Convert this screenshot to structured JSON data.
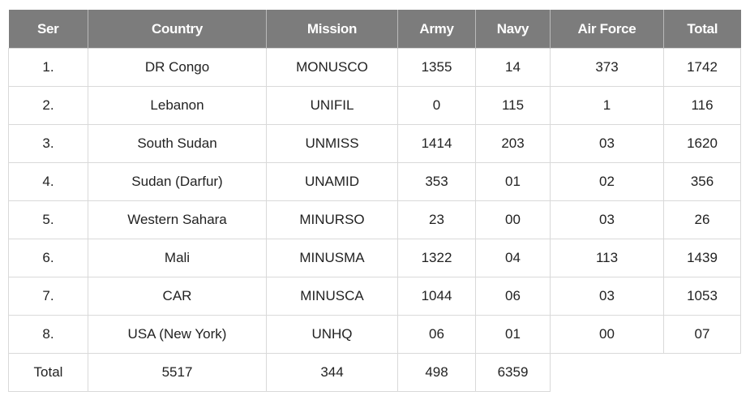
{
  "table": {
    "headers": [
      "Ser",
      "Country",
      "Mission",
      "Army",
      "Navy",
      "Air Force",
      "Total"
    ],
    "rows": [
      {
        "ser": "1.",
        "country": "DR Congo",
        "mission": "MONUSCO",
        "army": "1355",
        "navy": "14",
        "air_force": "373",
        "total": "1742"
      },
      {
        "ser": "2.",
        "country": "Lebanon",
        "mission": "UNIFIL",
        "army": "0",
        "navy": "115",
        "air_force": "1",
        "total": "116"
      },
      {
        "ser": "3.",
        "country": "South Sudan",
        "mission": "UNMISS",
        "army": "1414",
        "navy": "203",
        "air_force": "03",
        "total": "1620"
      },
      {
        "ser": "4.",
        "country": "Sudan (Darfur)",
        "mission": "UNAMID",
        "army": "353",
        "navy": "01",
        "air_force": "02",
        "total": "356"
      },
      {
        "ser": "5.",
        "country": "Western Sahara",
        "mission": "MINURSO",
        "army": "23",
        "navy": "00",
        "air_force": "03",
        "total": "26"
      },
      {
        "ser": "6.",
        "country": "Mali",
        "mission": "MINUSMA",
        "army": "1322",
        "navy": "04",
        "air_force": "113",
        "total": "1439"
      },
      {
        "ser": "7.",
        "country": "CAR",
        "mission": "MINUSCA",
        "army": "1044",
        "navy": "06",
        "air_force": "03",
        "total": "1053"
      },
      {
        "ser": "8.",
        "country": "USA (New York)",
        "mission": "UNHQ",
        "army": "06",
        "navy": "01",
        "air_force": "00",
        "total": "07"
      }
    ],
    "total_row": {
      "label": "Total",
      "country": "5517",
      "mission": "344",
      "army": "498",
      "navy": "6359"
    }
  },
  "colors": {
    "header_bg": "#7c7c7c",
    "header_text": "#ffffff",
    "border": "#d9d9d9",
    "text": "#222222"
  }
}
